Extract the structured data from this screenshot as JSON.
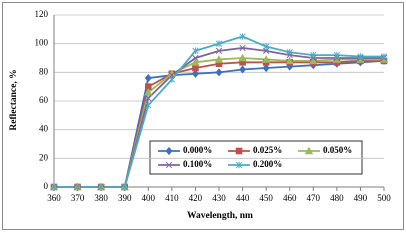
{
  "chart_data": {
    "type": "line",
    "x_label": "Wavelength, nm",
    "y_label": "Reflectance, %",
    "x": [
      360,
      370,
      380,
      390,
      400,
      410,
      420,
      430,
      440,
      450,
      460,
      470,
      480,
      490,
      500
    ],
    "xlim": [
      360,
      500
    ],
    "xticks": [
      360,
      370,
      380,
      390,
      400,
      410,
      420,
      430,
      440,
      450,
      460,
      470,
      480,
      490,
      500
    ],
    "ylim": [
      0,
      120
    ],
    "yticks": [
      0,
      20,
      40,
      60,
      80,
      100,
      120
    ],
    "grid": true,
    "series": [
      {
        "name": "0.000%",
        "color": "#3f6fbf",
        "marker": "diamond",
        "values": [
          0,
          0,
          0,
          0,
          76,
          78,
          79,
          80,
          82,
          83,
          84,
          85,
          86,
          87,
          88
        ]
      },
      {
        "name": "0.025%",
        "color": "#c0504d",
        "marker": "square",
        "values": [
          0,
          0,
          0,
          0,
          70,
          79,
          83,
          86,
          87,
          87,
          87,
          87,
          87,
          88,
          88
        ]
      },
      {
        "name": "0.050%",
        "color": "#9bbb59",
        "marker": "triangle",
        "values": [
          0,
          0,
          0,
          0,
          66,
          79,
          87,
          89,
          90,
          89,
          88,
          88,
          89,
          89,
          89
        ]
      },
      {
        "name": "0.100%",
        "color": "#8064a2",
        "marker": "cross",
        "values": [
          0,
          0,
          0,
          0,
          62,
          78,
          90,
          95,
          97,
          95,
          92,
          90,
          90,
          90,
          90
        ]
      },
      {
        "name": "0.200%",
        "color": "#4bacc6",
        "marker": "star",
        "values": [
          0,
          0,
          0,
          0,
          57,
          75,
          95,
          100,
          105,
          98,
          94,
          92,
          92,
          91,
          91
        ]
      }
    ]
  }
}
